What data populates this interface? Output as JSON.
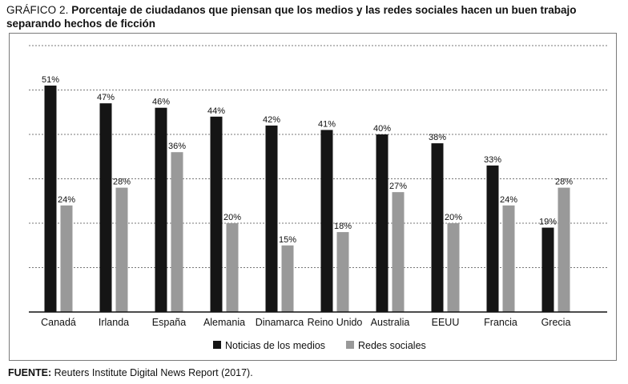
{
  "figure": {
    "label": "GRÁFICO 2.",
    "title_bold": "Porcentaje de ciudadanos que piensan que los medios y las redes sociales hacen un buen trabajo separando hechos de ficción",
    "source_label": "FUENTE:",
    "source_text": "Reuters Institute Digital News Report (2017)."
  },
  "colors": {
    "news": "#151515",
    "social": "#999999",
    "grid": "#777777",
    "axis": "#111111"
  },
  "chart_data": {
    "type": "bar",
    "title": "Porcentaje de ciudadanos que piensan que los medios y las redes sociales hacen un buen trabajo separando hechos de ficción",
    "categories": [
      "Canadá",
      "Irlanda",
      "España",
      "Alemania",
      "Dinamarca",
      "Reino Unido",
      "Australia",
      "EEUU",
      "Francia",
      "Grecia"
    ],
    "series": [
      {
        "name": "Noticias de los medios",
        "values": [
          51,
          47,
          46,
          44,
          42,
          41,
          40,
          38,
          33,
          19
        ]
      },
      {
        "name": "Redes sociales",
        "values": [
          24,
          28,
          36,
          20,
          15,
          18,
          27,
          20,
          24,
          28
        ]
      }
    ],
    "value_suffix": "%",
    "ylim": [
      0,
      60
    ],
    "gridline_step": 10,
    "xlabel": "",
    "ylabel": "",
    "legend_position": "bottom"
  }
}
